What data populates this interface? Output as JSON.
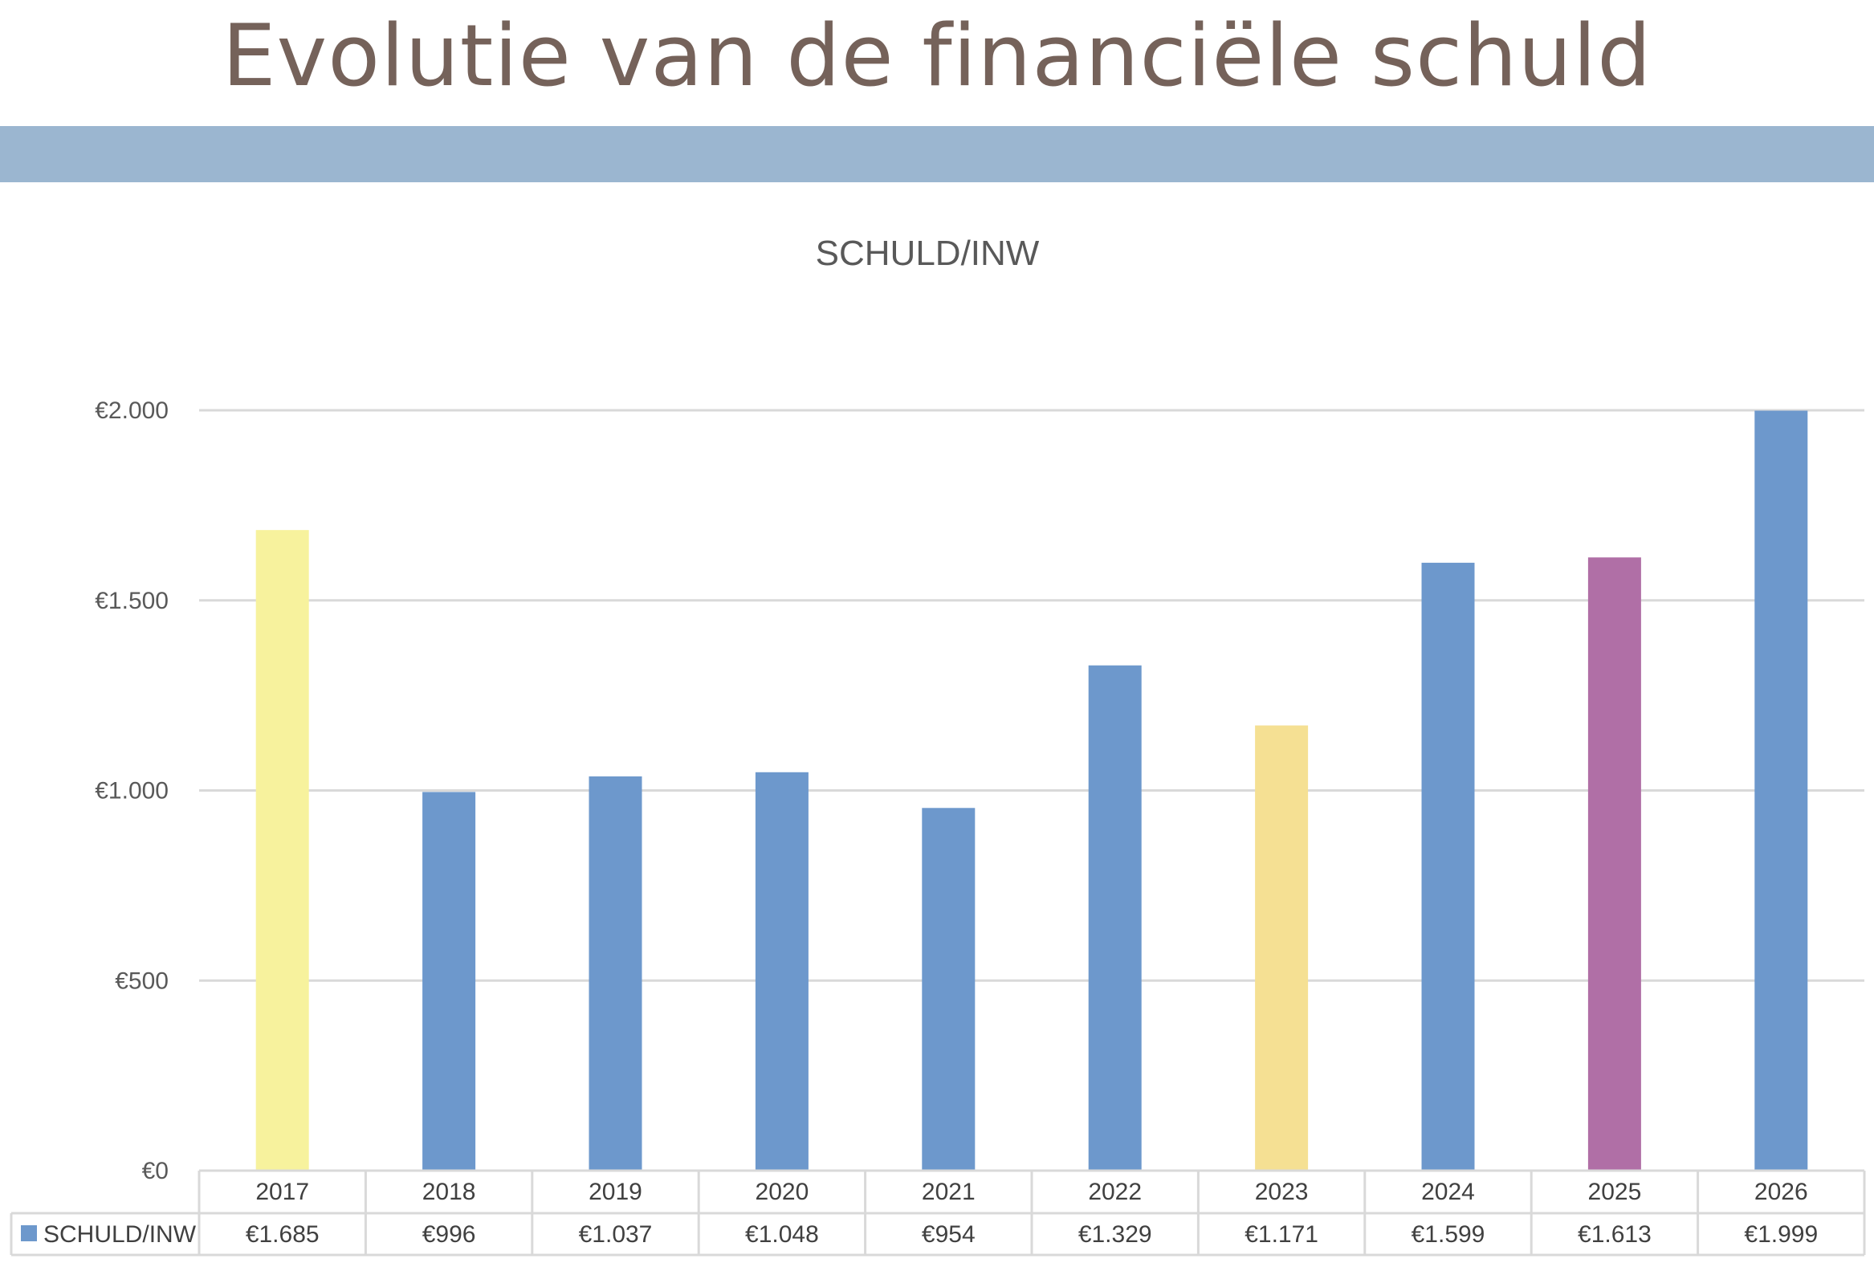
{
  "slide": {
    "title": "Evolutie van de financiële schuld"
  },
  "colors": {
    "title": "#75625a",
    "accent_bar": "#9bb6d0",
    "gridline": "#d9d9d9",
    "table_border": "#d9d9d9",
    "default_bar": "#6d98cc"
  },
  "chart_data": {
    "type": "bar",
    "title": "SCHULD/INW",
    "xlabel": "",
    "ylabel": "",
    "categories": [
      "2017",
      "2018",
      "2019",
      "2020",
      "2021",
      "2022",
      "2023",
      "2024",
      "2025",
      "2026"
    ],
    "series": [
      {
        "name": "SCHULD/INW",
        "values": [
          1685,
          996,
          1037,
          1048,
          954,
          1329,
          1171,
          1599,
          1613,
          1999
        ],
        "value_labels": [
          "€1.685",
          "€996",
          "€1.037",
          "€1.048",
          "€954",
          "€1.329",
          "€1.171",
          "€1.599",
          "€1.613",
          "€1.999"
        ],
        "point_colors": [
          "#f7f29d",
          "#6d98cc",
          "#6d98cc",
          "#6d98cc",
          "#6d98cc",
          "#6d98cc",
          "#f5e093",
          "#6d98cc",
          "#b06fa6",
          "#6d98cc"
        ]
      }
    ],
    "ylim": [
      0,
      2000
    ],
    "yticks": [
      0,
      500,
      1000,
      1500,
      2000
    ],
    "ytick_labels": [
      "€0",
      "€500",
      "€1.000",
      "€1.500",
      "€2.000"
    ],
    "grid": true,
    "legend": "data-table",
    "data_table": true
  }
}
